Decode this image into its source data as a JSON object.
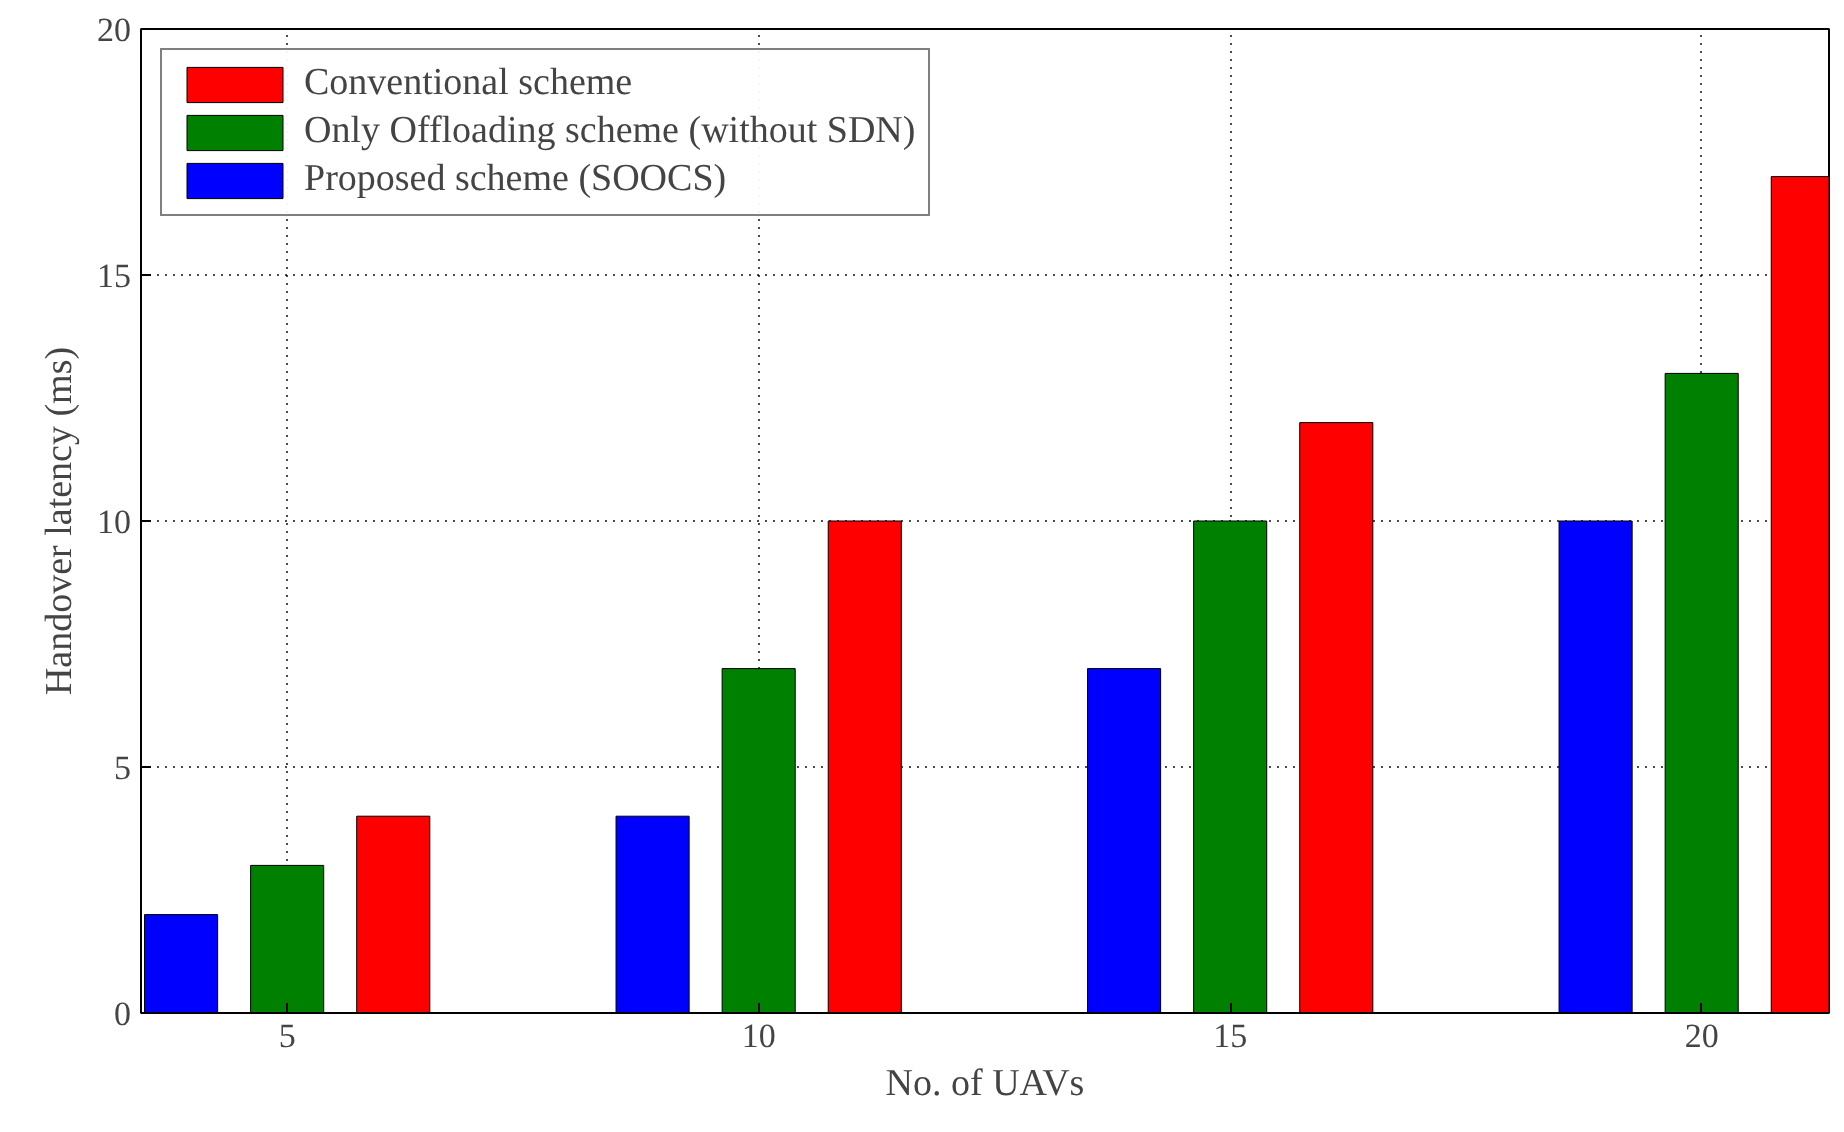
{
  "chart_data": {
    "type": "bar",
    "xlabel": "No. of UAVs",
    "ylabel": "Handover latency (ms)",
    "categories": [
      "5",
      "10",
      "15",
      "20"
    ],
    "series": [
      {
        "name": "Conventional scheme",
        "color": "#ff0000",
        "values": [
          4,
          10,
          12,
          17
        ]
      },
      {
        "name": "Only Offloading scheme (without SDN)",
        "color": "#008000",
        "values": [
          3,
          7,
          10,
          13
        ]
      },
      {
        "name": "Proposed scheme (SOOCS)",
        "color": "#0000ff",
        "values": [
          2,
          4,
          7,
          10
        ]
      }
    ],
    "ylim": [
      0,
      20
    ],
    "yticks": [
      0,
      5,
      10,
      15,
      20
    ],
    "grid": true,
    "legend": "top left"
  }
}
